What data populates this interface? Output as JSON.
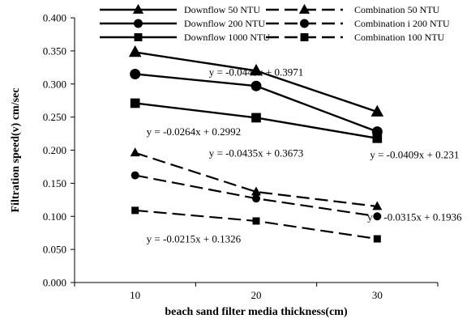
{
  "chart_data": {
    "type": "line",
    "title": "",
    "xlabel": "beach sand filter media thickness(cm)",
    "ylabel": "Filtration speed(v) cm/sec",
    "categories": [
      "10",
      "20",
      "30"
    ],
    "ylim": [
      0,
      0.4
    ],
    "yticks": [
      "0.000",
      "0.050",
      "0.100",
      "0.150",
      "0.200",
      "0.250",
      "0.300",
      "0.350",
      "0.400"
    ],
    "grid": false,
    "legend_position": "top",
    "series": [
      {
        "name": "Downflow 50 NTU",
        "values": [
          0.348,
          0.32,
          0.258
        ],
        "marker": "triangle",
        "dash": "solid"
      },
      {
        "name": "Downflow 200 NTU",
        "values": [
          0.315,
          0.297,
          0.228
        ],
        "marker": "circle",
        "dash": "solid"
      },
      {
        "name": "Downflow 1000 NTU",
        "values": [
          0.271,
          0.249,
          0.218
        ],
        "marker": "square",
        "dash": "solid"
      },
      {
        "name": "Combination 50 NTU",
        "values": [
          0.196,
          0.137,
          0.115
        ],
        "marker": "triangle",
        "dash": "dashed"
      },
      {
        "name": "Combination i 200 NTU",
        "values": [
          0.162,
          0.127,
          0.1
        ],
        "marker": "circle",
        "dash": "dashed"
      },
      {
        "name": "Combination 100 NTU",
        "values": [
          0.109,
          0.093,
          0.066
        ],
        "marker": "square",
        "dash": "dashed"
      }
    ],
    "annotations": [
      {
        "text": "y = -0.0443x + 0.3971",
        "x": "20",
        "y": 0.318
      },
      {
        "text": "y = -0.0264x + 0.2992",
        "x": "10",
        "y": 0.228
      },
      {
        "text": "y = -0.0435x + 0.3673",
        "x": "20",
        "y": 0.196
      },
      {
        "text": "y = -0.0409x + 0.231",
        "x": "30",
        "y": 0.193
      },
      {
        "text": "y = -0.0315x + 0.1936",
        "x": "30",
        "y": 0.099
      },
      {
        "text": "y = -0.0215x + 0.1326",
        "x": "10",
        "y": 0.066
      }
    ]
  }
}
